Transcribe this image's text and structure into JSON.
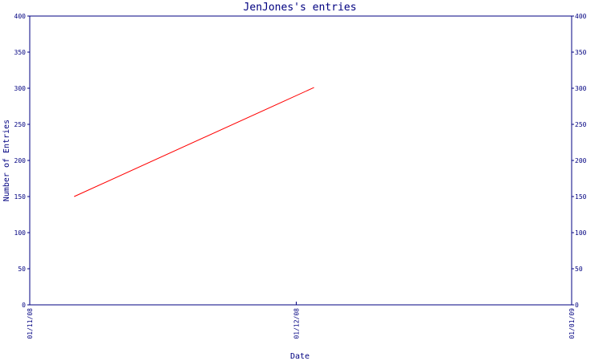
{
  "chart_data": {
    "type": "line",
    "title": "JenJones's entries",
    "xlabel": "Date",
    "ylabel": "Number of Entries",
    "x_ticks": [
      "01/11/08",
      "01/12/08",
      "01/01/09"
    ],
    "y_ticks": [
      0,
      50,
      100,
      150,
      200,
      250,
      300,
      350,
      400
    ],
    "ylim": [
      0,
      400
    ],
    "secondary_y_axis": true,
    "grid": false,
    "series": [
      {
        "points": [
          {
            "x": "2008-11-06",
            "y": 150
          },
          {
            "x": "2008-12-03",
            "y": 301
          }
        ]
      }
    ],
    "colors": {
      "line": "#ff0000",
      "axis": "#000080",
      "text": "#000080"
    }
  }
}
